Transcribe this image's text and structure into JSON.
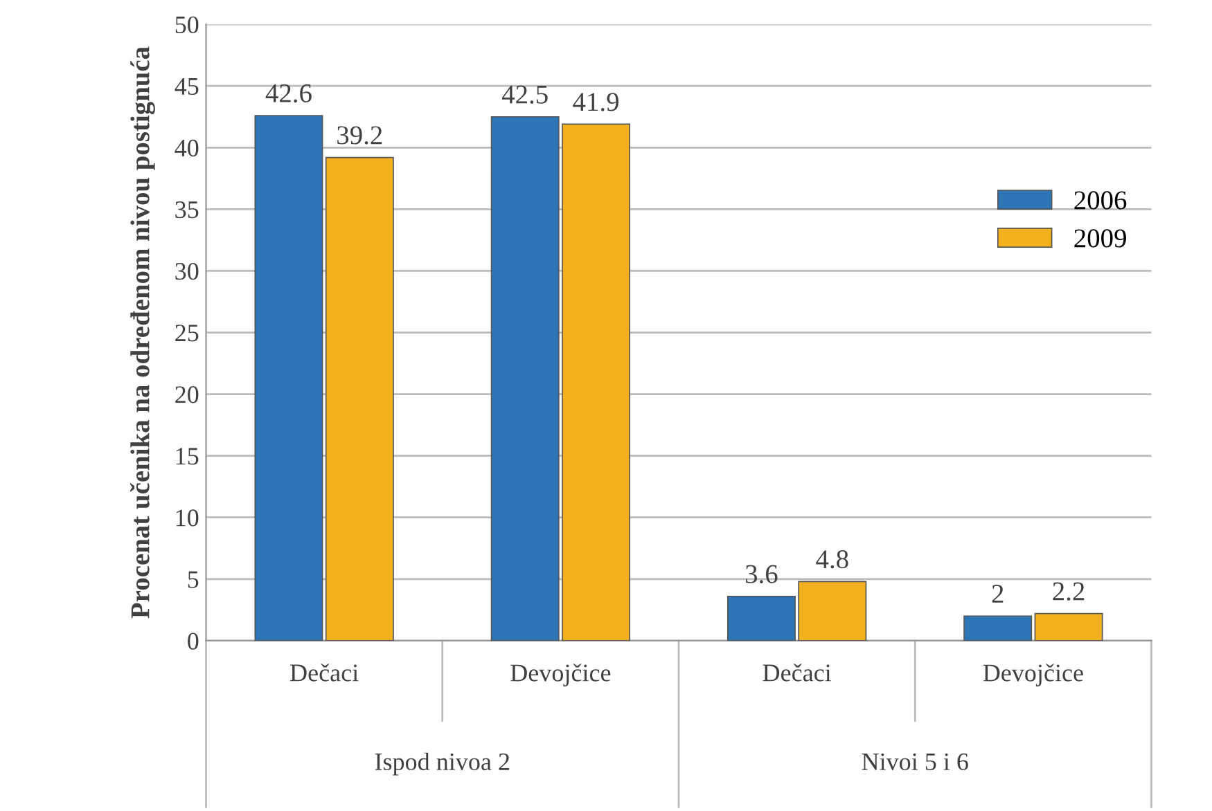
{
  "chart_data": {
    "type": "bar",
    "ylabel": "Procenat učenika na određenom nivou postignuća",
    "categories": [
      "Dečaci",
      "Devojčice",
      "Dečaci",
      "Devojčice"
    ],
    "series": [
      {
        "name": "2006",
        "color": "#2e75b6",
        "values": [
          42.6,
          42.5,
          3.6,
          2
        ]
      },
      {
        "name": "2009",
        "color": "#f2b01e",
        "values": [
          39.2,
          41.9,
          4.8,
          2.2
        ]
      }
    ],
    "annotations": [
      "Ispod nivoa 2",
      "Nivoi 5 i 6"
    ],
    "ylim": [
      0,
      50
    ],
    "yticks": [
      0,
      5,
      10,
      15,
      20,
      25,
      30,
      35,
      40,
      45,
      50
    ],
    "grid": "y",
    "legend": "right",
    "data_labels": true
  }
}
